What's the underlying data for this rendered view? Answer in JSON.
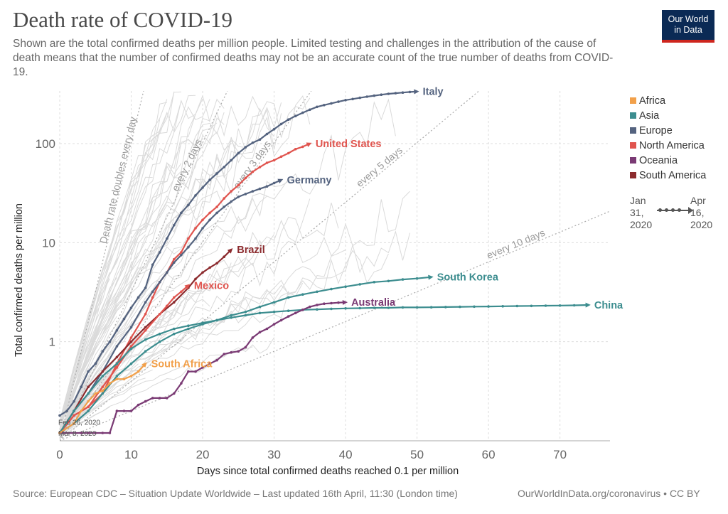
{
  "header": {
    "title": "Death rate of COVID-19",
    "subtitle": "Shown are the total confirmed deaths per million people. Limited testing and challenges in the attribution of the cause of death means that the number of confirmed deaths may not be an accurate count of the true number of deaths from COVID-19.",
    "logo_line1": "Our World",
    "logo_line2": "in Data"
  },
  "footer": {
    "source": "Source: European CDC – Situation Update Worldwide – Last updated 16th April, 11:30 (London time)",
    "url": "OurWorldInData.org/coronavirus • CC BY"
  },
  "legend": {
    "items": [
      {
        "label": "Africa",
        "color": "#f2a04a"
      },
      {
        "label": "Asia",
        "color": "#3c8d8f"
      },
      {
        "label": "Europe",
        "color": "#54637f"
      },
      {
        "label": "North America",
        "color": "#e0544e"
      },
      {
        "label": "Oceania",
        "color": "#7a3a74"
      },
      {
        "label": "South America",
        "color": "#8c2b2e"
      }
    ]
  },
  "timeline": {
    "start": "Jan 31, 2020",
    "end": "Apr 16, 2020",
    "start_lines": [
      "Jan",
      "31,",
      "2020"
    ],
    "end_lines": [
      "Apr",
      "16,",
      "2020"
    ]
  },
  "chart_data": {
    "type": "line",
    "xlabel": "Days since total confirmed deaths reached 0.1 per million",
    "ylabel": "Total confirmed deaths per million",
    "x_ticks": [
      0,
      10,
      20,
      30,
      40,
      50,
      60,
      70
    ],
    "y_ticks": [
      1,
      10,
      100
    ],
    "y_tick_labels": [
      "1",
      "10",
      "100"
    ],
    "y_scale": "log",
    "xlim": [
      0,
      77
    ],
    "ylim": [
      0.1,
      340
    ],
    "grid": true,
    "legend_position": "right",
    "doubling_lines": [
      {
        "label": "Death rate doubles every day",
        "days": 1
      },
      {
        "label": "every 2 days",
        "days": 2
      },
      {
        "label": "every 3 days",
        "days": 3
      },
      {
        "label": "every 5 days",
        "days": 5
      },
      {
        "label": "every 10 days",
        "days": 10
      }
    ],
    "annotations": [
      {
        "text": "Feb 26, 2020",
        "x": 0,
        "y": 0.155
      },
      {
        "text": "Mar 8, 2020",
        "x": 0,
        "y": 0.12
      }
    ],
    "series": [
      {
        "name": "Italy",
        "region": "Europe",
        "x": [
          0,
          1,
          2,
          3,
          4,
          5,
          6,
          7,
          8,
          9,
          10,
          11,
          12,
          13,
          14,
          15,
          16,
          17,
          18,
          19,
          20,
          21,
          22,
          23,
          24,
          25,
          26,
          27,
          28,
          29,
          30,
          31,
          32,
          33,
          34,
          35,
          36,
          37,
          38,
          39,
          40,
          41,
          42,
          43,
          44,
          45,
          46,
          47,
          48,
          49,
          50
        ],
        "y": [
          0.18,
          0.2,
          0.25,
          0.35,
          0.5,
          0.6,
          0.8,
          1.0,
          1.3,
          1.7,
          2.2,
          2.8,
          3.5,
          6,
          8,
          11,
          15,
          20,
          24,
          30,
          36,
          43,
          50,
          58,
          68,
          80,
          92,
          102,
          110,
          125,
          140,
          158,
          175,
          190,
          205,
          220,
          235,
          245,
          255,
          265,
          275,
          282,
          290,
          298,
          305,
          312,
          318,
          323,
          328,
          332,
          336
        ]
      },
      {
        "name": "United States",
        "region": "North America",
        "x": [
          0,
          2,
          4,
          6,
          8,
          10,
          12,
          13,
          14,
          15,
          16,
          17,
          18,
          19,
          20,
          21,
          22,
          23,
          24,
          25,
          26,
          27,
          28,
          29,
          30,
          31,
          32,
          33,
          34,
          35
        ],
        "y": [
          0.12,
          0.18,
          0.22,
          0.3,
          0.6,
          1.1,
          1.9,
          2.8,
          4,
          5,
          6.8,
          8,
          11,
          14,
          17,
          20,
          23,
          28,
          33,
          38,
          45,
          52,
          58,
          64,
          68,
          74,
          80,
          88,
          93,
          100
        ]
      },
      {
        "name": "Germany",
        "region": "Europe",
        "x": [
          0,
          2,
          4,
          6,
          8,
          10,
          12,
          13,
          14,
          15,
          16,
          17,
          18,
          19,
          20,
          21,
          22,
          23,
          24,
          25,
          26,
          27,
          28,
          29,
          30,
          31
        ],
        "y": [
          0.12,
          0.2,
          0.3,
          0.5,
          0.9,
          1.4,
          2.5,
          3.2,
          4,
          5,
          6.3,
          7.5,
          9,
          11,
          14,
          17,
          20,
          23,
          26,
          29,
          31,
          33,
          35,
          37,
          40,
          43
        ]
      },
      {
        "name": "Brazil",
        "region": "South America",
        "x": [
          0,
          2,
          4,
          6,
          8,
          10,
          12,
          14,
          16,
          18,
          19,
          20,
          21,
          22,
          23,
          24
        ],
        "y": [
          0.12,
          0.2,
          0.35,
          0.5,
          0.7,
          1.0,
          1.4,
          1.9,
          2.5,
          3.5,
          4.3,
          5.0,
          5.6,
          6.2,
          7.2,
          8.5
        ]
      },
      {
        "name": "Mexico",
        "region": "North America",
        "x": [
          0,
          2,
          4,
          6,
          8,
          10,
          12,
          14,
          15,
          16,
          17,
          18
        ],
        "y": [
          0.12,
          0.18,
          0.22,
          0.35,
          0.55,
          0.9,
          1.3,
          1.9,
          2.3,
          2.8,
          3.2,
          3.7
        ]
      },
      {
        "name": "South Korea",
        "region": "Asia",
        "x": [
          0,
          2,
          4,
          6,
          8,
          10,
          12,
          14,
          16,
          18,
          20,
          22,
          24,
          26,
          28,
          30,
          32,
          34,
          36,
          38,
          40,
          42,
          44,
          46,
          48,
          50,
          52
        ],
        "y": [
          0.12,
          0.15,
          0.2,
          0.3,
          0.45,
          0.6,
          0.8,
          1.0,
          1.2,
          1.35,
          1.5,
          1.65,
          1.85,
          2.0,
          2.25,
          2.5,
          2.8,
          3.0,
          3.2,
          3.4,
          3.6,
          3.8,
          4.0,
          4.1,
          4.25,
          4.35,
          4.5
        ]
      },
      {
        "name": "China",
        "region": "Asia",
        "x": [
          0,
          2,
          4,
          6,
          8,
          10,
          12,
          14,
          16,
          18,
          20,
          22,
          24,
          26,
          28,
          30,
          32,
          34,
          36,
          38,
          40,
          42,
          44,
          46,
          48,
          50,
          52,
          54,
          56,
          58,
          60,
          62,
          64,
          66,
          68,
          70,
          72,
          74
        ],
        "y": [
          0.12,
          0.2,
          0.3,
          0.45,
          0.6,
          0.85,
          1.05,
          1.2,
          1.35,
          1.45,
          1.55,
          1.65,
          1.75,
          1.85,
          1.95,
          2.0,
          2.05,
          2.1,
          2.12,
          2.15,
          2.17,
          2.18,
          2.2,
          2.2,
          2.22,
          2.22,
          2.23,
          2.24,
          2.25,
          2.26,
          2.27,
          2.28,
          2.29,
          2.3,
          2.31,
          2.32,
          2.33,
          2.35
        ]
      },
      {
        "name": "Australia",
        "region": "Oceania",
        "x": [
          0,
          3,
          4,
          5,
          6,
          7,
          8,
          9,
          10,
          11,
          12,
          13,
          14,
          15,
          16,
          17,
          18,
          19,
          20,
          21,
          22,
          23,
          24,
          25,
          26,
          27,
          28,
          29,
          30,
          31,
          32,
          33,
          34,
          35,
          36,
          37,
          38,
          39,
          40
        ],
        "y": [
          0.12,
          0.12,
          0.12,
          0.12,
          0.12,
          0.12,
          0.2,
          0.2,
          0.2,
          0.23,
          0.25,
          0.27,
          0.27,
          0.27,
          0.3,
          0.38,
          0.5,
          0.5,
          0.55,
          0.6,
          0.65,
          0.75,
          0.78,
          0.8,
          0.88,
          1.1,
          1.25,
          1.35,
          1.5,
          1.65,
          1.8,
          1.95,
          2.1,
          2.25,
          2.35,
          2.42,
          2.45,
          2.48,
          2.5
        ]
      },
      {
        "name": "South Africa",
        "region": "Africa",
        "x": [
          0,
          2,
          3,
          4,
          5,
          6,
          7,
          8,
          9,
          10,
          11,
          12
        ],
        "y": [
          0.12,
          0.15,
          0.2,
          0.25,
          0.3,
          0.32,
          0.38,
          0.42,
          0.42,
          0.45,
          0.5,
          0.6
        ]
      }
    ]
  }
}
